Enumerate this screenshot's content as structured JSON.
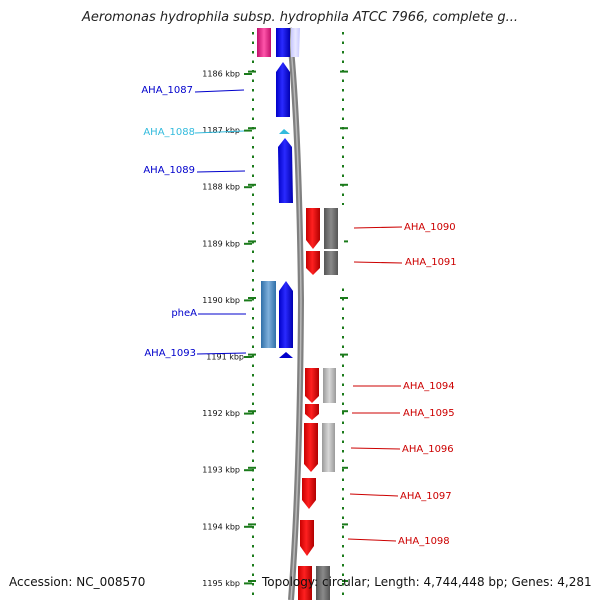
{
  "header": {
    "title": "Aeromonas hydrophila subsp. hydrophila ATCC 7966, complete g..."
  },
  "footer": {
    "accession": "Accession: NC_008570",
    "topology": "Topology: circular; Length: 4,744,448 bp; Genes: 4,281"
  },
  "colors": {
    "tick_green": "#1a7a1a",
    "backbone": "#808080",
    "cds_forward": "#0000ff",
    "cds_reverse": "#ff0000",
    "label_blue": "#0000cc",
    "label_cyan": "#33bbdd",
    "label_red": "#cc0000"
  },
  "ruler": [
    {
      "label": "1186 kbp"
    },
    {
      "label": "1187 kbp"
    },
    {
      "label": "1188 kbp"
    },
    {
      "label": "1189 kbp"
    },
    {
      "label": "1190 kbp"
    },
    {
      "label": "1191 kbp"
    },
    {
      "label": "1192 kbp"
    },
    {
      "label": "1193 kbp"
    },
    {
      "label": "1194 kbp"
    },
    {
      "label": "1195 kbp"
    }
  ],
  "genes_left": [
    {
      "name": "AHA_1087",
      "color": "#0000cc"
    },
    {
      "name": "AHA_1088",
      "color": "#33bbdd"
    },
    {
      "name": "AHA_1089",
      "color": "#0000cc"
    },
    {
      "name": "pheA",
      "color": "#0000cc"
    },
    {
      "name": "AHA_1093",
      "color": "#0000cc"
    }
  ],
  "genes_right": [
    {
      "name": "AHA_1090"
    },
    {
      "name": "AHA_1091"
    },
    {
      "name": "AHA_1094"
    },
    {
      "name": "AHA_1095"
    },
    {
      "name": "AHA_1096"
    },
    {
      "name": "AHA_1097"
    },
    {
      "name": "AHA_1098"
    }
  ]
}
